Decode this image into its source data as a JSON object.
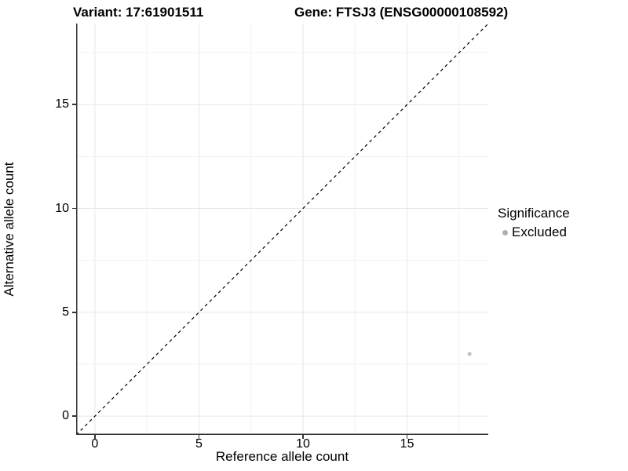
{
  "chart_data": {
    "type": "scatter",
    "titles": {
      "left": "Variant: 17:61901511",
      "right": "Gene: FTSJ3 (ENSG00000108592)"
    },
    "xlabel": "Reference allele count",
    "ylabel": "Alternative allele count",
    "xlim": [
      -0.9,
      18.9
    ],
    "ylim": [
      -0.9,
      18.9
    ],
    "x_ticks": [
      0,
      5,
      10,
      15
    ],
    "y_ticks": [
      0,
      5,
      10,
      15
    ],
    "x_minor_ticks": [
      2.5,
      7.5,
      12.5,
      17.5
    ],
    "y_minor_ticks": [
      2.5,
      7.5,
      12.5,
      17.5
    ],
    "grid": true,
    "legend_position": "right",
    "reference_line": {
      "type": "identity",
      "slope": 1,
      "intercept": 0,
      "style": "dashed",
      "color": "#000000"
    },
    "series": [
      {
        "name": "Excluded",
        "color": "#c2c2c2",
        "points": [
          {
            "x": 18,
            "y": 3
          }
        ]
      }
    ],
    "legend": {
      "title": "Significance",
      "items": [
        {
          "label": "Excluded",
          "color": "#b0b0b0",
          "marker": "circle"
        }
      ]
    },
    "colors": {
      "grid_major": "#e7e7e7",
      "grid_minor": "#f2f2f2",
      "axis_line": "#333333",
      "background": "#ffffff"
    }
  }
}
